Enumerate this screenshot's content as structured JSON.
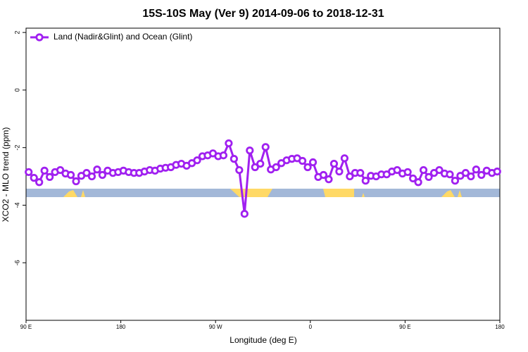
{
  "chart_data": {
    "type": "line",
    "title": "15S-10S May (Ver 9)   2014-09-06 to 2018-12-31",
    "xlabel": "Longitude (deg E)",
    "ylabel": "XCO2 - MLO trend (ppm)",
    "x": [
      92.5,
      97.5,
      102.5,
      107.5,
      112.5,
      117.5,
      122.5,
      127.5,
      132.5,
      137.5,
      142.5,
      147.5,
      152.5,
      157.5,
      162.5,
      167.5,
      172.5,
      177.5,
      182.5,
      187.5,
      192.5,
      197.5,
      202.5,
      207.5,
      212.5,
      217.5,
      222.5,
      227.5,
      232.5,
      237.5,
      242.5,
      247.5,
      252.5,
      257.5,
      262.5,
      267.5,
      272.5,
      277.5,
      282.5,
      287.5,
      292.5,
      297.5,
      302.5,
      307.5,
      312.5,
      317.5,
      322.5,
      327.5,
      332.5,
      337.5,
      342.5,
      347.5,
      352.5,
      357.5,
      362.5,
      367.5,
      372.5,
      377.5,
      382.5,
      387.5,
      392.5,
      397.5,
      402.5,
      407.5,
      412.5,
      417.5,
      422.5,
      427.5,
      432.5,
      437.5,
      442.5,
      447.5,
      452.5,
      457.5,
      462.5,
      467.5,
      472.5,
      477.5,
      482.5,
      487.5,
      492.5,
      497.5,
      502.5,
      507.5,
      512.5,
      517.5,
      522.5,
      527.5,
      532.5,
      537.5
    ],
    "series": [
      {
        "name": "Land (Nadir&Glint) and Ocean (Glint)",
        "color": "#a020f0",
        "values": [
          -2.85,
          -3.05,
          -3.2,
          -2.8,
          -3.02,
          -2.85,
          -2.78,
          -2.9,
          -2.95,
          -3.17,
          -2.98,
          -2.88,
          -3.0,
          -2.76,
          -2.95,
          -2.8,
          -2.88,
          -2.85,
          -2.8,
          -2.85,
          -2.88,
          -2.88,
          -2.83,
          -2.78,
          -2.8,
          -2.73,
          -2.7,
          -2.68,
          -2.6,
          -2.56,
          -2.63,
          -2.54,
          -2.44,
          -2.3,
          -2.27,
          -2.2,
          -2.3,
          -2.27,
          -1.85,
          -2.39,
          -2.78,
          -4.3,
          -2.1,
          -2.68,
          -2.56,
          -1.98,
          -2.76,
          -2.68,
          -2.54,
          -2.44,
          -2.39,
          -2.37,
          -2.46,
          -2.68,
          -2.51,
          -3.02,
          -2.95,
          -3.1,
          -2.56,
          -2.83,
          -2.37,
          -3.0,
          -2.88,
          -2.88,
          -3.15,
          -2.98,
          -3.0,
          -2.93,
          -2.93,
          -2.83,
          -2.78,
          -2.9,
          -2.85,
          -3.07,
          -3.2,
          -2.78,
          -3.02,
          -2.88,
          -2.78,
          -2.9,
          -2.93,
          -3.15,
          -2.98,
          -2.88,
          -3.0,
          -2.76,
          -2.95,
          -2.8,
          -2.88,
          -2.83
        ]
      }
    ],
    "xlim": [
      90,
      540
    ],
    "xticks": [
      {
        "value": 90,
        "label": "90 E"
      },
      180,
      {
        "value": 270,
        "label": "90 W"
      },
      {
        "value": 360,
        "label": "0"
      },
      {
        "value": 450,
        "label": "90 E"
      },
      {
        "value": 540,
        "label": "180"
      }
    ],
    "ylim": [
      -8,
      2.15
    ],
    "yticks": [
      2,
      0,
      -2,
      -4,
      -6
    ],
    "legend": "top-left"
  }
}
